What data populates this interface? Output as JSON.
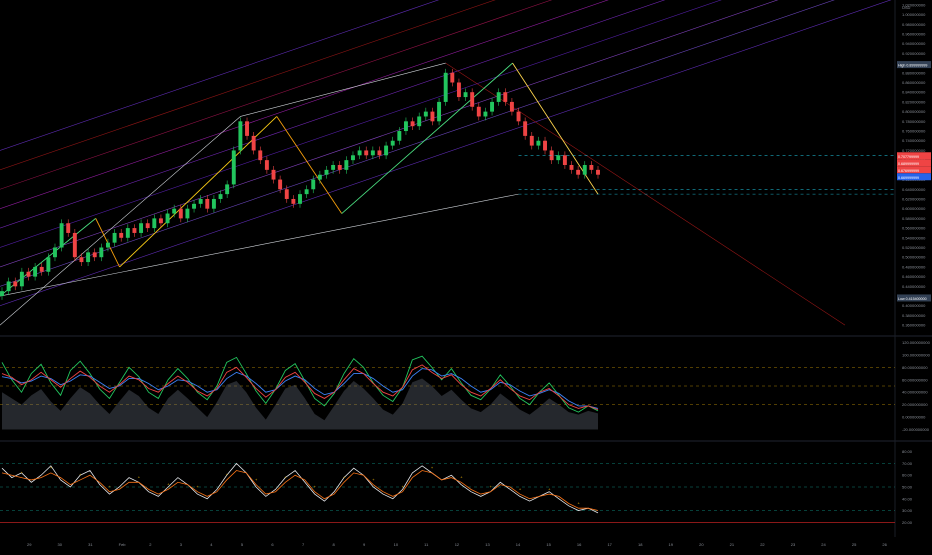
{
  "chart_data": [
    {
      "type": "candlestick",
      "pane": "price",
      "x_ticks": [
        "29",
        "30",
        "31",
        "Feb",
        "2",
        "3",
        "4",
        "5",
        "6",
        "7",
        "8",
        "9",
        "10",
        "11",
        "12",
        "13",
        "14",
        "15",
        "16",
        "17",
        "18",
        "19",
        "20",
        "21",
        "22",
        "23",
        "24",
        "25",
        "26"
      ],
      "y_ticks": [
        "1.020000000",
        "1.000000000",
        "0.980000000",
        "0.960000000",
        "0.940000000",
        "0.920000000",
        "0.900000000",
        "0.880000000",
        "0.860000000",
        "0.840000000",
        "0.820000000",
        "0.800000000",
        "0.780000000",
        "0.760000000",
        "0.740000000",
        "0.720000000",
        "0.700000000",
        "0.680000000",
        "0.660000000",
        "0.640000000",
        "0.620000000",
        "0.600000000",
        "0.580000000",
        "0.560000000",
        "0.540000000",
        "0.520000000",
        "0.500000000",
        "0.480000000",
        "0.460000000",
        "0.440000000",
        "0.420000000",
        "0.400000000",
        "0.380000000",
        "0.360000000"
      ],
      "ylim": [
        0.35,
        1.03
      ],
      "currency": "USD",
      "high_label": "High",
      "high_value": "0.899999999",
      "low_label": "Low",
      "low_value": "0.415400000",
      "price_tags": [
        "0.707799999",
        "0.689999999",
        "0.676999999",
        "0.669999999"
      ],
      "wave_points": [
        [
          0,
          0.42
        ],
        [
          2.8,
          0.58
        ],
        [
          3.5,
          0.48
        ],
        [
          8.1,
          0.79
        ],
        [
          10.0,
          0.59
        ],
        [
          15.0,
          0.9
        ],
        [
          17.5,
          0.63
        ]
      ],
      "closes": [
        0.43,
        0.45,
        0.44,
        0.47,
        0.46,
        0.48,
        0.47,
        0.5,
        0.52,
        0.57,
        0.55,
        0.5,
        0.49,
        0.51,
        0.5,
        0.52,
        0.53,
        0.55,
        0.54,
        0.56,
        0.55,
        0.57,
        0.56,
        0.58,
        0.57,
        0.59,
        0.6,
        0.58,
        0.6,
        0.61,
        0.62,
        0.6,
        0.62,
        0.63,
        0.65,
        0.72,
        0.78,
        0.75,
        0.72,
        0.7,
        0.68,
        0.66,
        0.64,
        0.62,
        0.61,
        0.63,
        0.64,
        0.66,
        0.67,
        0.68,
        0.69,
        0.68,
        0.7,
        0.71,
        0.72,
        0.71,
        0.72,
        0.71,
        0.73,
        0.74,
        0.76,
        0.78,
        0.77,
        0.79,
        0.8,
        0.78,
        0.82,
        0.88,
        0.86,
        0.83,
        0.84,
        0.81,
        0.79,
        0.8,
        0.82,
        0.84,
        0.82,
        0.8,
        0.78,
        0.75,
        0.73,
        0.74,
        0.72,
        0.7,
        0.71,
        0.69,
        0.68,
        0.67,
        0.69,
        0.68,
        0.67
      ]
    },
    {
      "type": "line",
      "pane": "oscillator-1",
      "y_ticks": [
        "120.000000000",
        "100.000000000",
        "80.000000000",
        "60.000000000",
        "40.000000000",
        "20.000000000",
        "0.000000000",
        "-20.000000000"
      ],
      "ylim": [
        -24,
        124
      ],
      "levels": [
        80,
        50,
        20
      ],
      "series": [
        {
          "color": "#22c55e",
          "values": [
            88,
            60,
            40,
            70,
            85,
            55,
            35,
            75,
            90,
            70,
            45,
            30,
            55,
            80,
            65,
            40,
            30,
            60,
            78,
            62,
            40,
            28,
            50,
            88,
            96,
            70,
            42,
            22,
            45,
            75,
            86,
            58,
            30,
            18,
            38,
            70,
            94,
            80,
            55,
            35,
            25,
            48,
            92,
            98,
            80,
            60,
            78,
            55,
            35,
            28,
            45,
            68,
            50,
            30,
            20,
            40,
            55,
            35,
            15,
            8,
            18,
            10
          ]
        },
        {
          "color": "#3b82f6",
          "values": [
            65,
            62,
            55,
            58,
            66,
            62,
            52,
            58,
            68,
            66,
            56,
            46,
            50,
            62,
            62,
            54,
            44,
            50,
            60,
            58,
            50,
            40,
            44,
            62,
            72,
            66,
            54,
            40,
            44,
            58,
            66,
            60,
            46,
            36,
            40,
            54,
            70,
            70,
            62,
            50,
            40,
            44,
            66,
            78,
            76,
            66,
            70,
            62,
            50,
            40,
            44,
            56,
            52,
            42,
            34,
            38,
            44,
            38,
            26,
            18,
            18,
            14
          ]
        },
        {
          "color": "#ef4444",
          "values": [
            70,
            64,
            52,
            60,
            72,
            60,
            48,
            62,
            74,
            64,
            50,
            40,
            52,
            66,
            60,
            46,
            40,
            54,
            66,
            56,
            42,
            34,
            46,
            72,
            80,
            64,
            46,
            32,
            44,
            64,
            72,
            56,
            38,
            30,
            40,
            60,
            78,
            70,
            54,
            40,
            34,
            48,
            76,
            84,
            72,
            62,
            68,
            52,
            40,
            34,
            46,
            60,
            46,
            34,
            28,
            40,
            46,
            34,
            20,
            14,
            18,
            12
          ]
        }
      ],
      "band_values": [
        40,
        30,
        20,
        35,
        45,
        25,
        10,
        30,
        48,
        38,
        20,
        5,
        25,
        44,
        34,
        15,
        5,
        30,
        44,
        30,
        15,
        0,
        24,
        52,
        58,
        40,
        15,
        -4,
        20,
        46,
        52,
        30,
        5,
        -5,
        18,
        42,
        58,
        46,
        30,
        12,
        4,
        22,
        56,
        62,
        50,
        34,
        44,
        28,
        14,
        8,
        20,
        38,
        26,
        12,
        4,
        16,
        30,
        20,
        8,
        4,
        10,
        6
      ],
      "marker_label": "Bear",
      "bull_label": "Bull"
    },
    {
      "type": "line",
      "pane": "oscillator-2",
      "y_ticks": [
        "80.00",
        "70.00",
        "60.00",
        "50.00",
        "40.00",
        "30.00",
        "20.00"
      ],
      "ylim": [
        16,
        84
      ],
      "levels": [
        70,
        50,
        30
      ],
      "series": [
        {
          "color": "#e5e7eb",
          "values": [
            66,
            58,
            62,
            54,
            60,
            68,
            56,
            50,
            60,
            64,
            52,
            44,
            50,
            58,
            54,
            46,
            42,
            50,
            58,
            52,
            44,
            40,
            48,
            60,
            70,
            62,
            50,
            42,
            48,
            58,
            64,
            54,
            44,
            38,
            46,
            58,
            66,
            60,
            50,
            44,
            40,
            48,
            62,
            68,
            62,
            56,
            60,
            52,
            46,
            42,
            46,
            54,
            48,
            42,
            38,
            42,
            46,
            40,
            34,
            30,
            32,
            28
          ]
        },
        {
          "color": "#f97316",
          "values": [
            62,
            60,
            58,
            56,
            58,
            62,
            58,
            52,
            56,
            60,
            54,
            46,
            48,
            54,
            54,
            48,
            44,
            48,
            54,
            52,
            46,
            42,
            46,
            56,
            64,
            62,
            52,
            44,
            46,
            54,
            60,
            56,
            46,
            40,
            44,
            54,
            62,
            60,
            52,
            46,
            42,
            46,
            58,
            64,
            62,
            56,
            58,
            54,
            48,
            44,
            46,
            52,
            50,
            44,
            40,
            42,
            44,
            42,
            36,
            32,
            32,
            30
          ]
        }
      ],
      "marker_label": "Bear"
    }
  ]
}
